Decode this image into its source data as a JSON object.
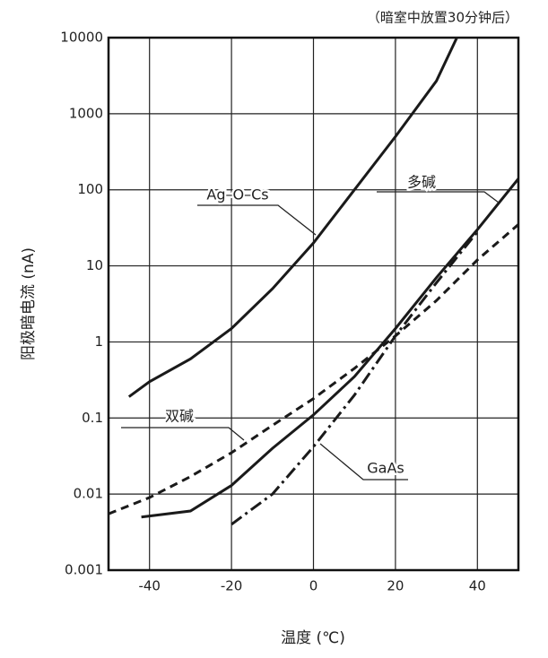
{
  "chart_data": {
    "type": "line",
    "note": "（暗室中放置30分钟后）",
    "xlabel": "温度 (℃)",
    "ylabel": "阳极暗电流 (nA)",
    "xlim": [
      -50,
      50
    ],
    "xticks": [
      -40,
      -20,
      0,
      20,
      40
    ],
    "ylim": [
      0.001,
      10000
    ],
    "yticks": [
      10000,
      1000,
      100,
      10,
      1,
      0.1,
      0.01,
      0.001
    ],
    "yscale": "log",
    "grid": true,
    "series": [
      {
        "name": "Ag–O–Cs",
        "color": "#1a1a1a",
        "dash": "solid",
        "x": [
          -45,
          -40,
          -30,
          -20,
          -10,
          0,
          10,
          20,
          30,
          35
        ],
        "values": [
          0.19,
          0.3,
          0.6,
          1.5,
          5,
          20,
          100,
          500,
          2700,
          10000
        ]
      },
      {
        "name": "多碱",
        "color": "#1a1a1a",
        "dash": "solid",
        "x": [
          -42,
          -30,
          -20,
          -10,
          0,
          10,
          20,
          30,
          40,
          50
        ],
        "values": [
          0.005,
          0.006,
          0.013,
          0.04,
          0.11,
          0.35,
          1.5,
          7,
          30,
          140
        ]
      },
      {
        "name": "双碱",
        "color": "#1a1a1a",
        "dash": "dashed",
        "x": [
          -50,
          -40,
          -30,
          -20,
          -10,
          0,
          10,
          20,
          30,
          40,
          50
        ],
        "values": [
          0.0055,
          0.009,
          0.017,
          0.035,
          0.08,
          0.18,
          0.45,
          1.2,
          3.5,
          12,
          35
        ]
      },
      {
        "name": "GaAs",
        "color": "#1a1a1a",
        "dash": "dashdot",
        "x": [
          -20,
          -10,
          0,
          10,
          20,
          30,
          40
        ],
        "values": [
          0.004,
          0.01,
          0.042,
          0.2,
          1.2,
          6,
          28
        ]
      }
    ]
  }
}
